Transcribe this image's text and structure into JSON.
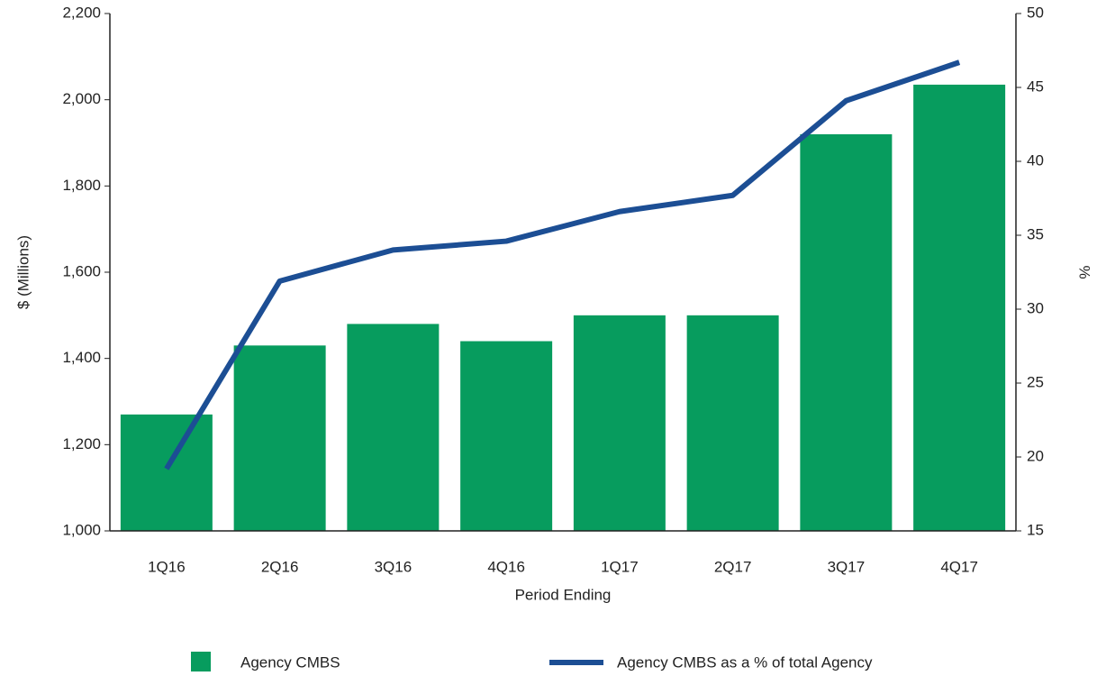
{
  "chart_data": {
    "type": "bar_line",
    "x_label": "Period Ending",
    "y_label": "$ (Millions)",
    "y2_label": "%",
    "categories": [
      "1Q16",
      "2Q16",
      "3Q16",
      "4Q16",
      "1Q17",
      "2Q17",
      "3Q17",
      "4Q17"
    ],
    "series": [
      {
        "name": "Agency CMBS",
        "type": "bar",
        "color": "#079c5e",
        "values": [
          1270,
          1430,
          1480,
          1440,
          1500,
          1500,
          1920,
          2035
        ]
      },
      {
        "name": "Agency CMBS as a % of total Agency",
        "type": "line",
        "axis": "y2",
        "color": "#1c4e94",
        "values": [
          19.2,
          31.9,
          34.0,
          34.6,
          36.6,
          37.7,
          44.1,
          46.7
        ]
      }
    ],
    "ylim": [
      1000,
      2200
    ],
    "yticks": [
      {
        "value": 1000,
        "label": "1,000"
      },
      {
        "value": 1200,
        "label": "1,200"
      },
      {
        "value": 1400,
        "label": "1,400"
      },
      {
        "value": 1600,
        "label": "1,600"
      },
      {
        "value": 1800,
        "label": "1,800"
      },
      {
        "value": 2000,
        "label": "2,000"
      },
      {
        "value": 2200,
        "label": "2,200"
      }
    ],
    "y2lim": [
      15,
      50
    ],
    "y2ticks": [
      15,
      20,
      25,
      30,
      35,
      40,
      45,
      50
    ],
    "legend": "bottom"
  }
}
